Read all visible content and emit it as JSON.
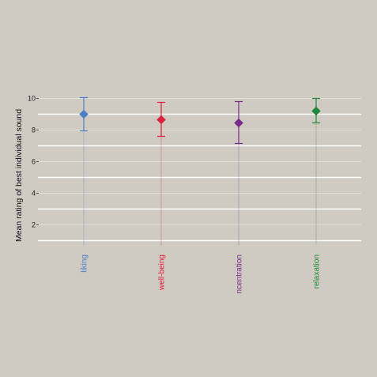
{
  "chart_data": {
    "type": "scatter",
    "title": "",
    "xlabel": "",
    "ylabel": "Mean rating of best individual sound",
    "ylim": [
      1,
      10.5
    ],
    "yticks": [
      2,
      4,
      6,
      8,
      10
    ],
    "ytick_labels": [
      "2",
      "4",
      "6",
      "8",
      "10"
    ],
    "grid": true,
    "legend": "none",
    "categories": [
      "liking",
      "well-being",
      "ncentration",
      "relaxation"
    ],
    "points": [
      {
        "category": "liking",
        "mean": 9.0,
        "lower": 7.95,
        "upper": 10.05,
        "color": "#4a80c8"
      },
      {
        "category": "well-being",
        "mean": 8.65,
        "lower": 7.6,
        "upper": 9.75,
        "color": "#e0203a"
      },
      {
        "category": "ncentration",
        "mean": 8.45,
        "lower": 7.15,
        "upper": 9.8,
        "color": "#7a2a8a"
      },
      {
        "category": "relaxation",
        "mean": 9.2,
        "lower": 8.45,
        "upper": 10.0,
        "color": "#1f8a3a"
      }
    ]
  }
}
